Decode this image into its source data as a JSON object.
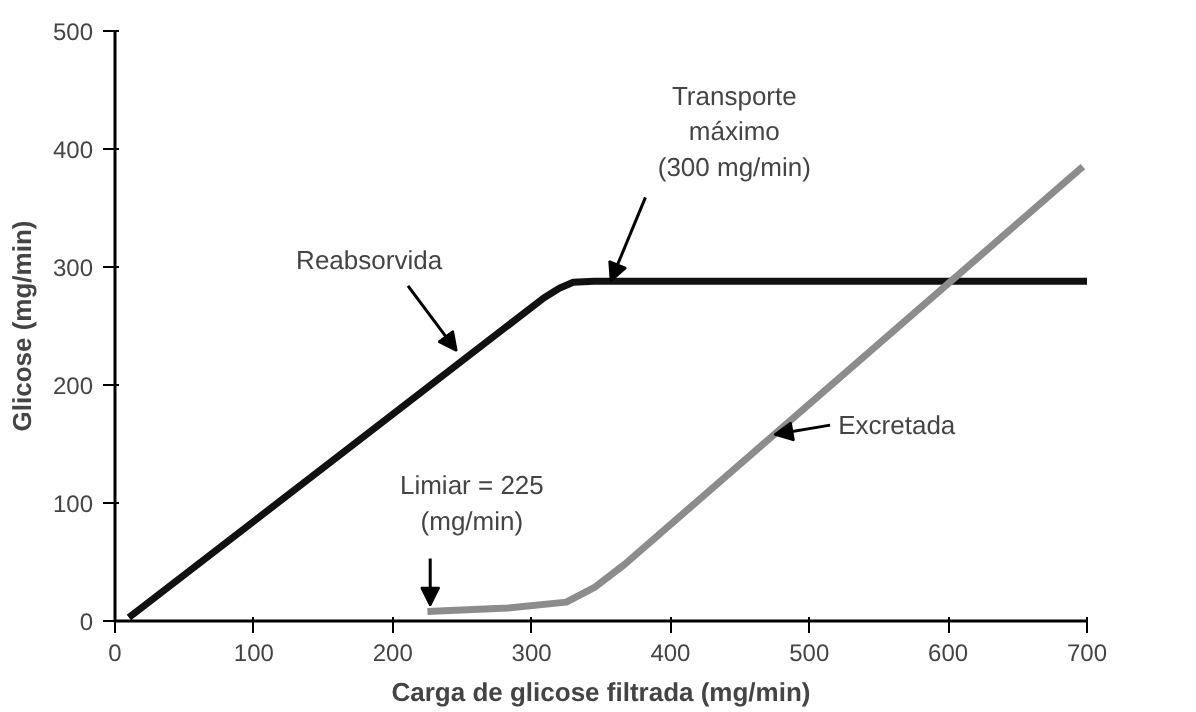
{
  "chart_data": {
    "type": "line",
    "xlabel": "Carga de glicose filtrada (mg/min)",
    "ylabel": "Glicose (mg/min)",
    "xlim": [
      0,
      700
    ],
    "ylim": [
      0,
      500
    ],
    "xticks": [
      0,
      100,
      200,
      300,
      400,
      500,
      600,
      700
    ],
    "yticks": [
      0,
      100,
      200,
      300,
      400,
      500
    ],
    "grid": false,
    "series": [
      {
        "color": "#111111",
        "x": [
          10,
          309,
          320,
          330,
          345,
          700
        ],
        "values": [
          3,
          274,
          282,
          287,
          288,
          288
        ]
      },
      {
        "color": "#8c8c8c",
        "x": [
          225,
          283,
          325,
          346,
          367,
          697
        ],
        "values": [
          8,
          11,
          16,
          29,
          48,
          385
        ]
      }
    ],
    "annotations": [
      {
        "text": "Reabsorvida",
        "x": 246,
        "y": 229
      },
      {
        "text": "Transporte\nmáximo\n(300 mg/min)",
        "x": 357,
        "y": 288
      },
      {
        "text": "Excretada",
        "x": 475,
        "y": 158
      },
      {
        "text": "Limiar = 225\n(mg/min)",
        "x": 227,
        "y": 13
      }
    ]
  }
}
